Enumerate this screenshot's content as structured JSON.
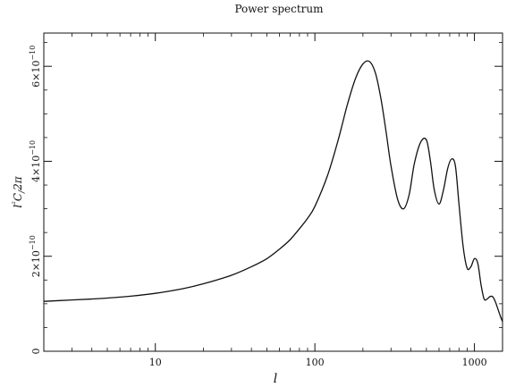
{
  "chart_data": {
    "type": "line",
    "title": "Power spectrum",
    "xlabel": "l",
    "ylabel": "l²C_l/2π",
    "x_scale": "log",
    "xlim": [
      2,
      1500
    ],
    "ylim": [
      0,
      6.7e-10
    ],
    "grid": false,
    "legend": "none",
    "line_color": "#111111",
    "x_ticks": [
      {
        "value": 10,
        "label": "10"
      },
      {
        "value": 100,
        "label": "100"
      },
      {
        "value": 1000,
        "label": "1000"
      }
    ],
    "y_ticks": [
      {
        "value": 0,
        "label": "0",
        "exp": ""
      },
      {
        "value": 2e-10,
        "label": "2×10",
        "exp": "−10"
      },
      {
        "value": 4e-10,
        "label": "4×10",
        "exp": "−10"
      },
      {
        "value": 6e-10,
        "label": "6×10",
        "exp": "−10"
      }
    ],
    "x": [
      2,
      3,
      4,
      5,
      7,
      10,
      15,
      20,
      30,
      40,
      50,
      60,
      70,
      80,
      90,
      100,
      120,
      140,
      160,
      180,
      200,
      220,
      240,
      260,
      280,
      300,
      330,
      360,
      390,
      420,
      460,
      500,
      530,
      560,
      600,
      640,
      680,
      720,
      760,
      800,
      850,
      900,
      950,
      1000,
      1050,
      1100,
      1150,
      1200,
      1250,
      1300,
      1350,
      1400,
      1450,
      1500
    ],
    "y": [
      1.05e-10,
      1.08e-10,
      1.1e-10,
      1.12e-10,
      1.16e-10,
      1.22e-10,
      1.32e-10,
      1.42e-10,
      1.6e-10,
      1.78e-10,
      1.95e-10,
      2.15e-10,
      2.35e-10,
      2.58e-10,
      2.8e-10,
      3.05e-10,
      3.7e-10,
      4.45e-10,
      5.2e-10,
      5.75e-10,
      6.05e-10,
      6.1e-10,
      5.85e-10,
      5.3e-10,
      4.6e-10,
      3.9e-10,
      3.2e-10,
      3e-10,
      3.3e-10,
      3.95e-10,
      4.4e-10,
      4.45e-10,
      4e-10,
      3.4e-10,
      3.1e-10,
      3.4e-10,
      3.85e-10,
      4.05e-10,
      3.9e-10,
      3.1e-10,
      2.2e-10,
      1.75e-10,
      1.78e-10,
      1.95e-10,
      1.85e-10,
      1.4e-10,
      1.1e-10,
      1.1e-10,
      1.15e-10,
      1.15e-10,
      1.05e-10,
      9e-11,
      7.5e-11,
      6.2e-11
    ]
  }
}
